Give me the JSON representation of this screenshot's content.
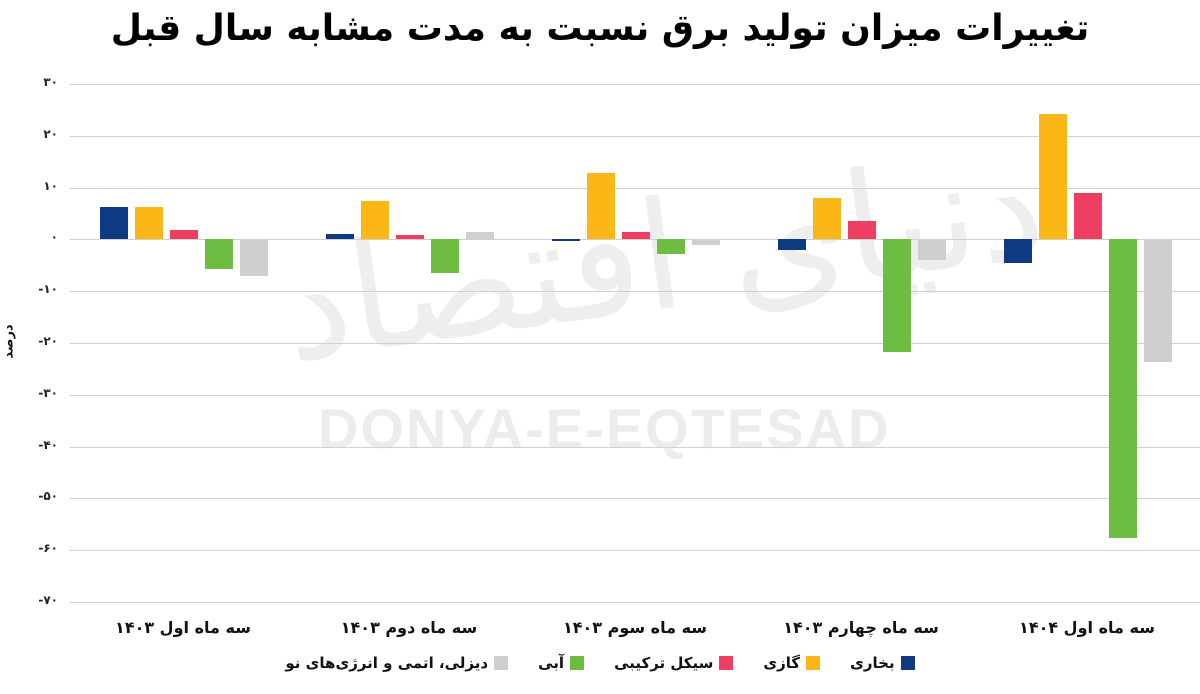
{
  "title": "تغییرات میزان تولید برق نسبت به مدت مشابه سال قبل",
  "watermark": {
    "text": "DONYA-E-EQTESAD",
    "logo": "دنیای اقتصاد"
  },
  "y_axis": {
    "label": "درصد",
    "ticks": [
      "۳۰",
      "۲۰",
      "۱۰",
      "۰",
      "-۱۰",
      "-۲۰",
      "-۳۰",
      "-۴۰",
      "-۵۰",
      "-۶۰",
      "-۷۰"
    ]
  },
  "categories": [
    "سه ماه اول ۱۴۰۳",
    "سه ماه دوم ۱۴۰۳",
    "سه ماه سوم ۱۴۰۳",
    "سه ماه چهارم ۱۴۰۳",
    "سه ماه اول ۱۴۰۴"
  ],
  "legend": [
    {
      "label": "بخاری",
      "color": "#0d3a80"
    },
    {
      "label": "گازی",
      "color": "#fbb715"
    },
    {
      "label": "سیکل ترکیبی",
      "color": "#ee3f62"
    },
    {
      "label": "آبی",
      "color": "#6dbd43"
    },
    {
      "label": "دیزلی، اتمی و انرژی‌های نو",
      "color": "#cfcfd1"
    }
  ],
  "chart_data": {
    "type": "bar",
    "title": "تغییرات میزان تولید برق نسبت به مدت مشابه سال قبل",
    "xlabel": "",
    "ylabel": "درصد",
    "ylim": [
      -70,
      30
    ],
    "yticks": [
      30,
      20,
      10,
      0,
      -10,
      -20,
      -30,
      -40,
      -50,
      -60,
      -70
    ],
    "grid": true,
    "legend_position": "bottom",
    "categories": [
      "سه ماه اول ۱۴۰۳",
      "سه ماه دوم ۱۴۰۳",
      "سه ماه سوم ۱۴۰۳",
      "سه ماه چهارم ۱۴۰۳",
      "سه ماه اول ۱۴۰۴"
    ],
    "series": [
      {
        "name": "بخاری",
        "color": "#0d3a80",
        "values": [
          6.2,
          1.1,
          -0.4,
          -2.1,
          -4.6
        ]
      },
      {
        "name": "گازی",
        "color": "#fbb715",
        "values": [
          6.2,
          7.4,
          12.8,
          7.9,
          24.2
        ]
      },
      {
        "name": "سیکل ترکیبی",
        "color": "#ee3f62",
        "values": [
          1.9,
          0.8,
          1.4,
          3.5,
          8.9
        ]
      },
      {
        "name": "آبی",
        "color": "#6dbd43",
        "values": [
          -5.8,
          -6.4,
          -2.8,
          -21.7,
          -57.7
        ]
      },
      {
        "name": "دیزلی، اتمی و انرژی‌های نو",
        "color": "#cfcfd1",
        "values": [
          -7.0,
          1.4,
          -1.0,
          -3.9,
          -23.6
        ]
      }
    ]
  }
}
